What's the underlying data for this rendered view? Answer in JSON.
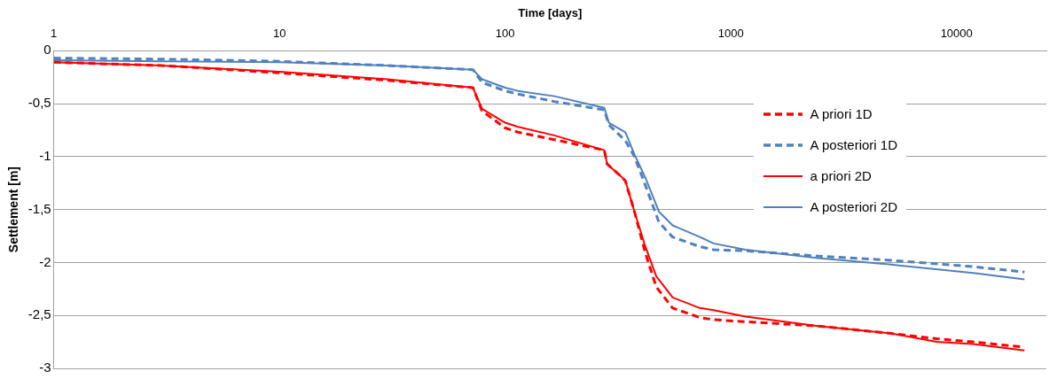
{
  "chart_data": {
    "type": "line",
    "xlabel": "Time [days]",
    "ylabel": "Settlement [m]",
    "log": "x",
    "xlim": [
      1,
      25000
    ],
    "xticks": [
      1,
      10,
      100,
      1000,
      10000
    ],
    "ylim": [
      -3,
      0
    ],
    "yticks": [
      {
        "value": -3,
        "label": "-3"
      },
      {
        "value": -2.5,
        "label": "-2,5"
      },
      {
        "value": -2,
        "label": "-2"
      },
      {
        "value": -1.5,
        "label": "-1,5"
      },
      {
        "value": -1,
        "label": "-1"
      },
      {
        "value": -0.5,
        "label": "-0,5"
      },
      {
        "value": 0,
        "label": "0"
      }
    ],
    "grid": "y",
    "legend": "right",
    "marker": "none",
    "series": [
      {
        "name": "A priori 1D",
        "color": "#ff0000",
        "line_style": "dashed",
        "x": [
          1,
          3,
          10,
          30,
          72,
          79,
          100,
          114,
          165,
          275,
          283,
          331,
          341,
          374,
          418,
          467,
          552,
          729,
          838,
          1161,
          2438,
          5128,
          8150,
          11830,
          20000
        ],
        "values": [
          -0.11,
          -0.14,
          -0.21,
          -0.28,
          -0.35,
          -0.57,
          -0.73,
          -0.77,
          -0.84,
          -0.94,
          -1.07,
          -1.2,
          -1.23,
          -1.52,
          -1.91,
          -2.23,
          -2.43,
          -2.52,
          -2.54,
          -2.56,
          -2.6,
          -2.67,
          -2.72,
          -2.75,
          -2.8
        ]
      },
      {
        "name": "A posteriori 1D",
        "color": "#4f81bd",
        "line_style": "dashed",
        "x": [
          1,
          3,
          10,
          30,
          72,
          79,
          100,
          114,
          165,
          275,
          288,
          341,
          374,
          418,
          480,
          552,
          729,
          838,
          1161,
          2438,
          5128,
          11830,
          20000
        ],
        "values": [
          -0.07,
          -0.08,
          -0.1,
          -0.14,
          -0.18,
          -0.3,
          -0.38,
          -0.41,
          -0.48,
          -0.56,
          -0.7,
          -0.85,
          -1.0,
          -1.27,
          -1.62,
          -1.76,
          -1.85,
          -1.88,
          -1.89,
          -1.94,
          -1.98,
          -2.04,
          -2.09
        ]
      },
      {
        "name": "a priori 2D",
        "color": "#ff0000",
        "line_style": "solid",
        "x": [
          1,
          3,
          10,
          30,
          72,
          79,
          100,
          114,
          165,
          275,
          283,
          331,
          341,
          374,
          418,
          467,
          552,
          729,
          838,
          1161,
          2438,
          5128,
          8150,
          11830,
          20000
        ],
        "values": [
          -0.11,
          -0.14,
          -0.2,
          -0.27,
          -0.35,
          -0.55,
          -0.68,
          -0.72,
          -0.8,
          -0.94,
          -1.07,
          -1.2,
          -1.23,
          -1.52,
          -1.85,
          -2.13,
          -2.33,
          -2.43,
          -2.45,
          -2.51,
          -2.6,
          -2.67,
          -2.75,
          -2.77,
          -2.83
        ]
      },
      {
        "name": "A posteriori 2D",
        "color": "#4f81bd",
        "line_style": "solid",
        "x": [
          1,
          3,
          10,
          30,
          72,
          79,
          100,
          114,
          165,
          275,
          288,
          341,
          374,
          418,
          480,
          552,
          729,
          838,
          1161,
          2438,
          5128,
          11830,
          20000
        ],
        "values": [
          -0.09,
          -0.1,
          -0.11,
          -0.14,
          -0.18,
          -0.27,
          -0.35,
          -0.38,
          -0.43,
          -0.54,
          -0.68,
          -0.77,
          -0.98,
          -1.2,
          -1.52,
          -1.65,
          -1.76,
          -1.82,
          -1.88,
          -1.96,
          -2.02,
          -2.1,
          -2.16
        ]
      }
    ]
  }
}
